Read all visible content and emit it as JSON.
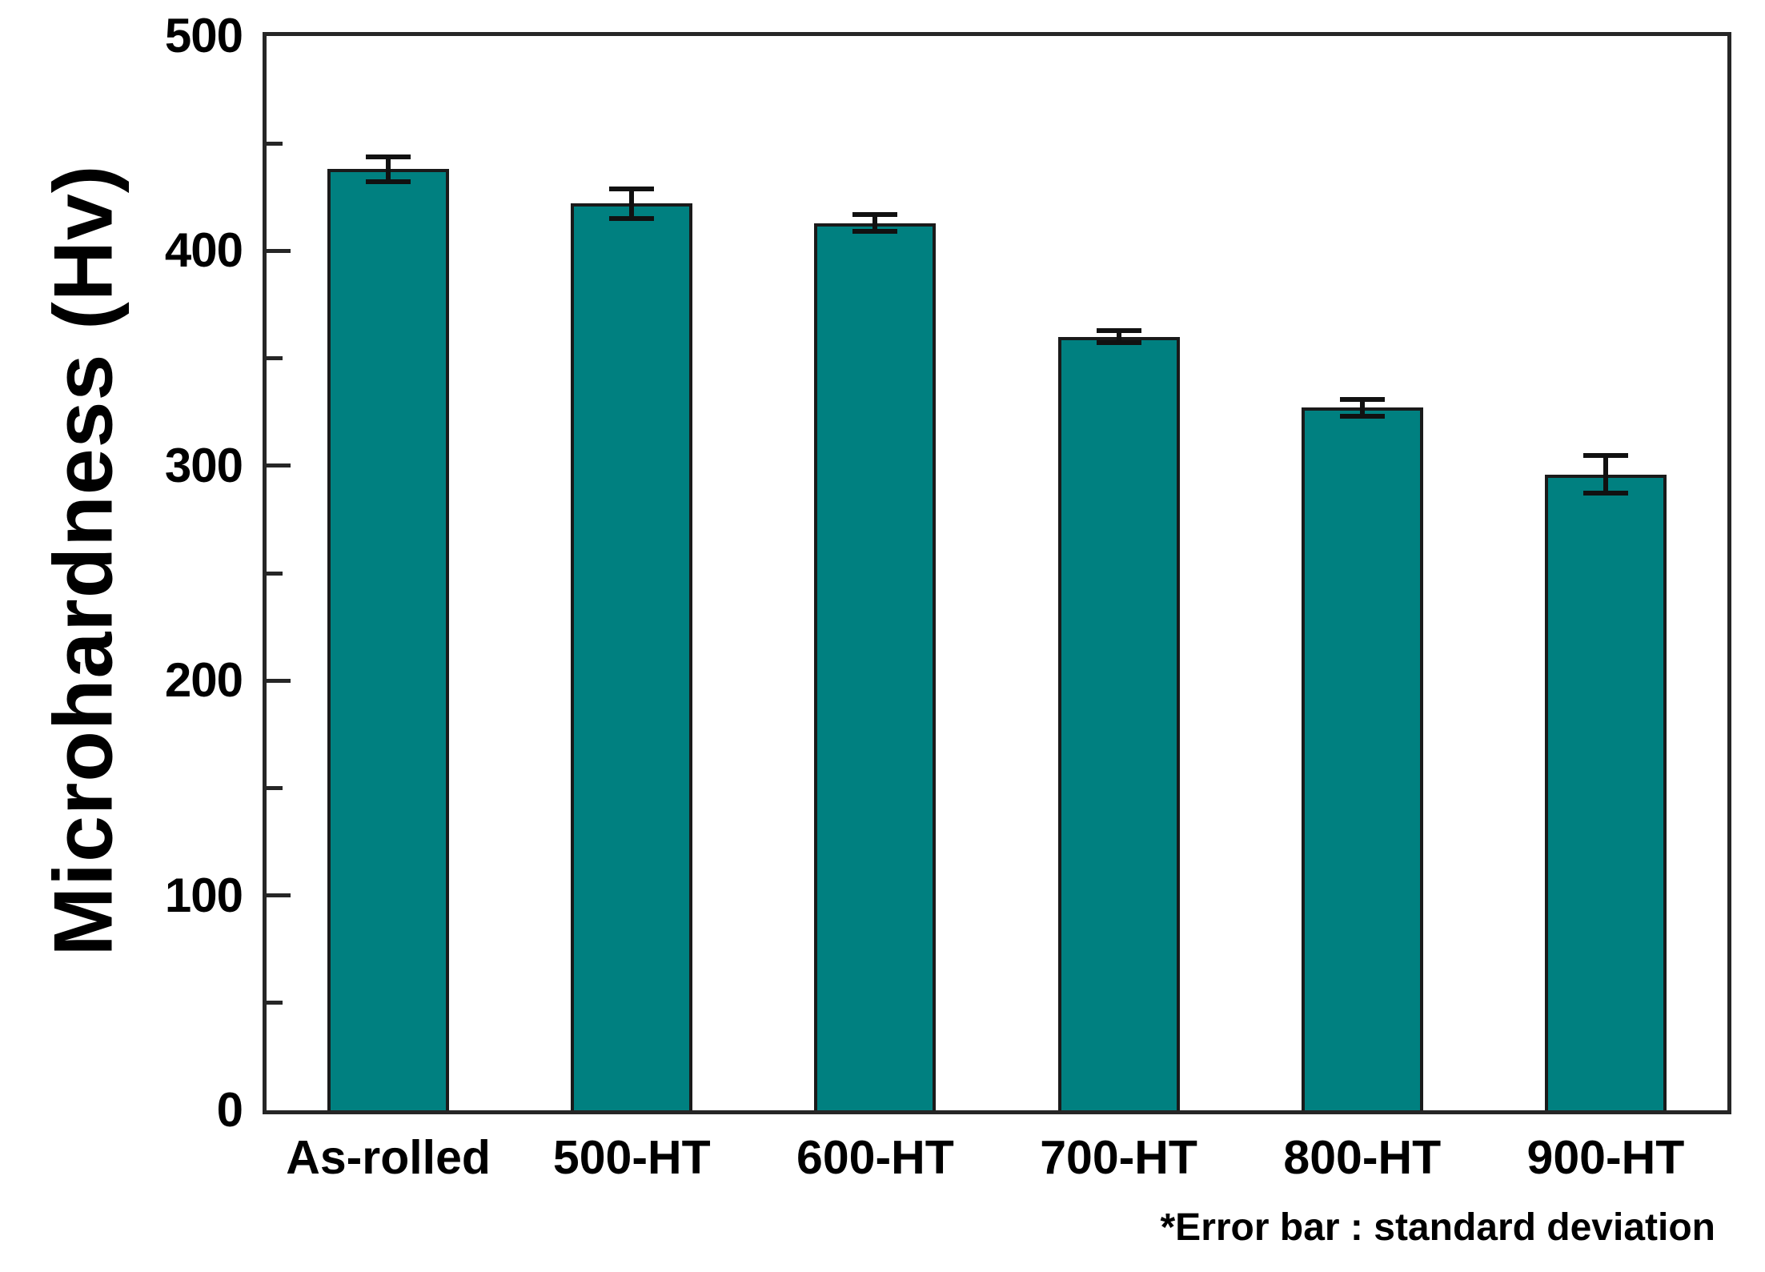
{
  "chart_data": {
    "type": "bar",
    "title": "",
    "categories": [
      "As-rolled",
      "500-HT",
      "600-HT",
      "700-HT",
      "800-HT",
      "900-HT"
    ],
    "values": [
      438,
      422,
      413,
      360,
      327,
      296
    ],
    "errors": [
      7,
      8,
      5,
      4,
      5,
      10
    ],
    "ylabel": "Microhardness (Hv)",
    "xlabel": "",
    "ylim": [
      0,
      500
    ],
    "ytick_labels": [
      "0",
      "100",
      "200",
      "300",
      "400",
      "500"
    ],
    "yticks": [
      0,
      100,
      200,
      300,
      400,
      500
    ],
    "minor_ticks": [
      50,
      150,
      250,
      350,
      450
    ],
    "grid": false,
    "legend_position": "none",
    "footnote": "*Error bar : standard deviation",
    "colors": {
      "bar_fill": "#008080",
      "bar_border": "#1a1a1a",
      "axis": "#262626",
      "error_bar": "#111111",
      "text": "#000000",
      "background": "#ffffff"
    }
  }
}
